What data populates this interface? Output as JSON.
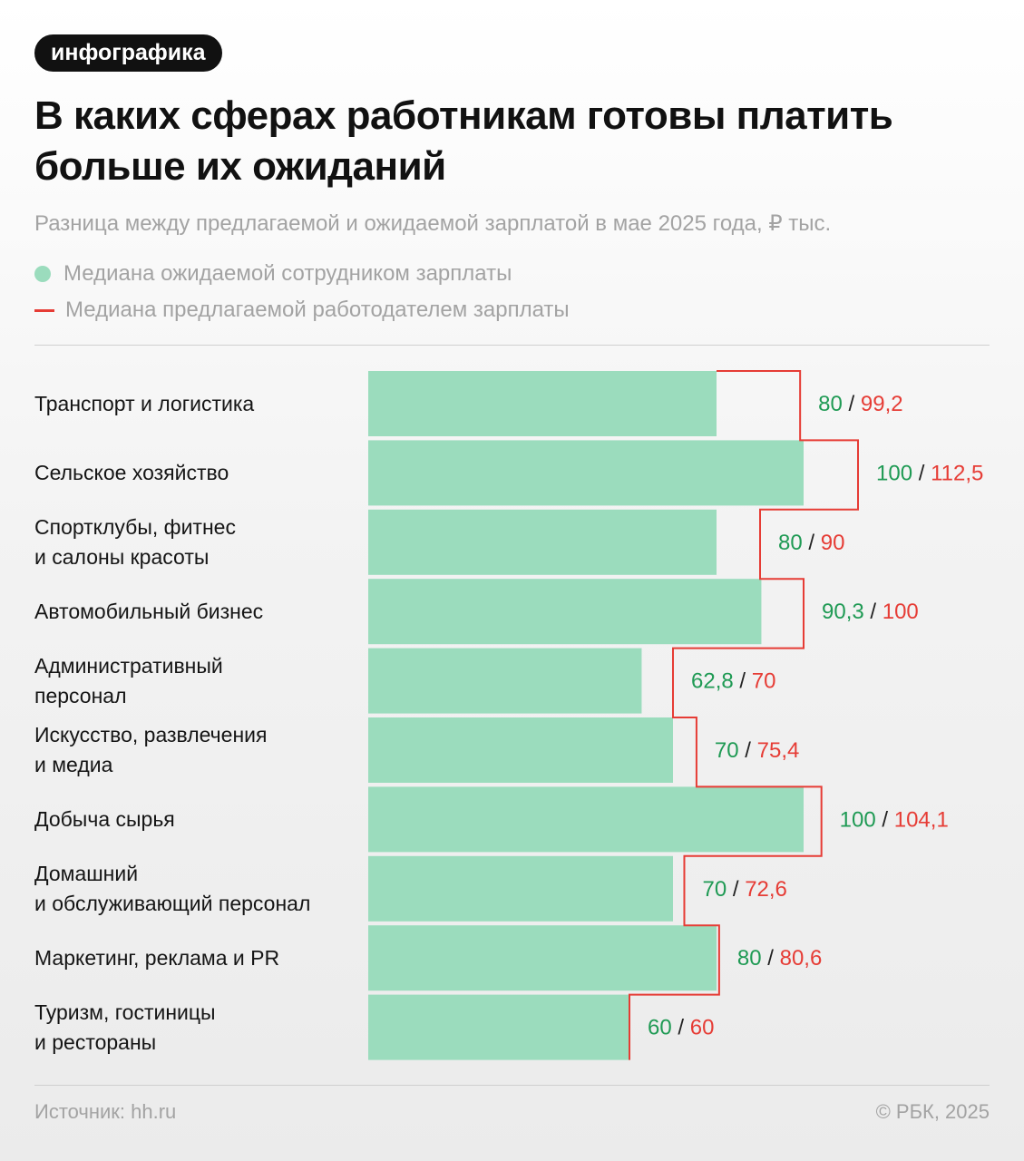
{
  "badge": "инфографика",
  "title": "В каких сферах работникам готовы платить больше их ожиданий",
  "subtitle": "Разница между предлагаемой и ожидаемой зарплатой в мае 2025 года, ₽ тыс.",
  "legend": {
    "expected": "Медиана ожидаемой сотрудником зарплаты",
    "offered": "Медиана предлагаемой работодателем зарплаты"
  },
  "colors": {
    "expected": "#9bdcbd",
    "offered": "#e63c35",
    "expected_text": "#1f9a54"
  },
  "chart_data": {
    "type": "bar",
    "orientation": "horizontal",
    "categories": [
      "Транспорт и логистика",
      "Сельское хозяйство",
      "Спортклубы, фитнес\nи салоны красоты",
      "Автомобильный бизнес",
      "Административный\nперсонал",
      "Искусство, развлечения\nи медиа",
      "Добыча сырья",
      "Домашний\nи обслуживающий персонал",
      "Маркетинг, реклама и PR",
      "Туризм, гостиницы\nи рестораны"
    ],
    "series": [
      {
        "name": "Медиана ожидаемой сотрудником зарплаты",
        "values": [
          80,
          100,
          80,
          90.3,
          62.8,
          70,
          100,
          70,
          80,
          60
        ]
      },
      {
        "name": "Медиана предлагаемой работодателем зарплаты",
        "values": [
          99.2,
          112.5,
          90,
          100,
          70,
          75.4,
          104.1,
          72.6,
          80.6,
          60
        ]
      }
    ],
    "data_labels": [
      {
        "expected": "80",
        "offered": "99,2"
      },
      {
        "expected": "100",
        "offered": "112,5"
      },
      {
        "expected": "80",
        "offered": "90"
      },
      {
        "expected": "90,3",
        "offered": "100"
      },
      {
        "expected": "62,8",
        "offered": "70"
      },
      {
        "expected": "70",
        "offered": "75,4"
      },
      {
        "expected": "100",
        "offered": "104,1"
      },
      {
        "expected": "70",
        "offered": "72,6"
      },
      {
        "expected": "80",
        "offered": "80,6"
      },
      {
        "expected": "60",
        "offered": "60"
      }
    ],
    "separator": "/",
    "offered_style": "step-line",
    "grid": false
  },
  "footer": {
    "source": "Источник: hh.ru",
    "copyright": "© РБК, 2025"
  }
}
